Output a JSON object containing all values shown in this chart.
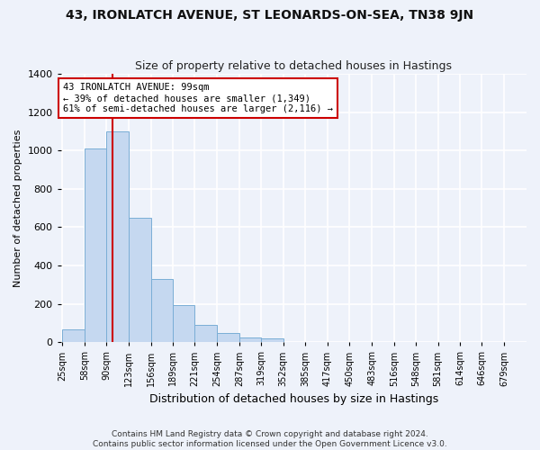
{
  "title": "43, IRONLATCH AVENUE, ST LEONARDS-ON-SEA, TN38 9JN",
  "subtitle": "Size of property relative to detached houses in Hastings",
  "xlabel": "Distribution of detached houses by size in Hastings",
  "ylabel": "Number of detached properties",
  "bin_edges": [
    25,
    58,
    90,
    123,
    156,
    189,
    221,
    254,
    287,
    319,
    352,
    385,
    417,
    450,
    483,
    516,
    548,
    581,
    614,
    646,
    679,
    712
  ],
  "bar_heights": [
    65,
    1010,
    1100,
    650,
    330,
    195,
    90,
    48,
    25,
    20,
    0,
    0,
    0,
    0,
    0,
    0,
    0,
    0,
    0,
    0,
    0
  ],
  "bar_color": "#c5d8f0",
  "bar_edge_color": "#7aaed6",
  "property_size": 99,
  "vline_color": "#cc0000",
  "annotation_text": "43 IRONLATCH AVENUE: 99sqm\n← 39% of detached houses are smaller (1,349)\n61% of semi-detached houses are larger (2,116) →",
  "annotation_box_color": "#ffffff",
  "annotation_box_edge_color": "#cc0000",
  "ylim": [
    0,
    1400
  ],
  "yticks": [
    0,
    200,
    400,
    600,
    800,
    1000,
    1200,
    1400
  ],
  "background_color": "#eef2fa",
  "plot_bg_color": "#eef2fa",
  "grid_color": "#ffffff",
  "footer_line1": "Contains HM Land Registry data © Crown copyright and database right 2024.",
  "footer_line2": "Contains public sector information licensed under the Open Government Licence v3.0."
}
